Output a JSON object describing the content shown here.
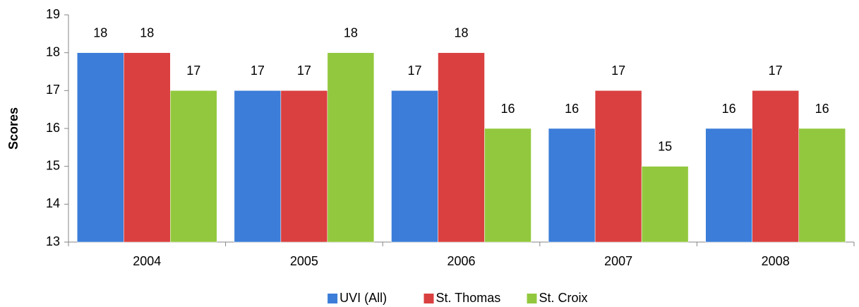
{
  "chart_data": {
    "type": "bar",
    "y_label": "Scores",
    "categories": [
      "2004",
      "2005",
      "2006",
      "2007",
      "2008"
    ],
    "series": [
      {
        "name": "UVI (All)",
        "color": "#3b7dd8",
        "values": [
          18,
          17,
          17,
          16,
          16
        ]
      },
      {
        "name": "St. Thomas",
        "color": "#d9403f",
        "values": [
          18,
          17,
          18,
          17,
          17
        ]
      },
      {
        "name": "St. Croix",
        "color": "#92c83e",
        "values": [
          17,
          18,
          16,
          15,
          16
        ]
      }
    ],
    "ylim": [
      13,
      19
    ],
    "yticks": [
      13,
      14,
      15,
      16,
      17,
      18,
      19
    ],
    "grid": false,
    "legend": "bottom"
  }
}
